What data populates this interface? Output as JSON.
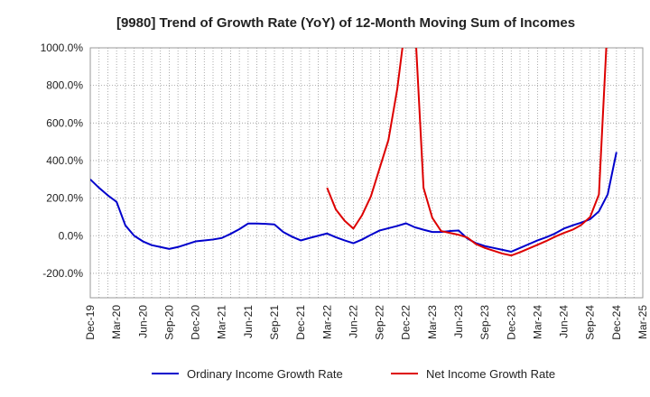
{
  "chart_data": {
    "type": "line",
    "title": "[9980]  Trend of Growth Rate (YoY) of 12-Month Moving Sum of Incomes",
    "xlabel": "",
    "ylabel": "",
    "ylim": [
      -330,
      1000
    ],
    "yticks": [
      1000,
      800,
      600,
      400,
      200,
      0,
      -200
    ],
    "ytick_labels": [
      "1000.0%",
      "800.0%",
      "600.0%",
      "400.0%",
      "200.0%",
      "0.0%",
      "-200.0%"
    ],
    "x_start": "2019-12",
    "x_end": "2025-03",
    "xtick_labels": [
      "Dec-19",
      "Mar-20",
      "Jun-20",
      "Sep-20",
      "Dec-20",
      "Mar-21",
      "Jun-21",
      "Sep-21",
      "Dec-21",
      "Mar-22",
      "Jun-22",
      "Sep-22",
      "Dec-22",
      "Mar-23",
      "Jun-23",
      "Sep-23",
      "Dec-23",
      "Mar-24",
      "Jun-24",
      "Sep-24",
      "Dec-24",
      "Mar-25"
    ],
    "grid": true,
    "legend_position": "bottom",
    "series": [
      {
        "name": "Ordinary Income Growth Rate",
        "color": "#0000cc",
        "points": [
          [
            "2019-12",
            300
          ],
          [
            "2020-01",
            255
          ],
          [
            "2020-02",
            215
          ],
          [
            "2020-03",
            180
          ],
          [
            "2020-04",
            55
          ],
          [
            "2020-05",
            0
          ],
          [
            "2020-06",
            -30
          ],
          [
            "2020-07",
            -50
          ],
          [
            "2020-08",
            -60
          ],
          [
            "2020-09",
            -70
          ],
          [
            "2020-10",
            -60
          ],
          [
            "2020-11",
            -45
          ],
          [
            "2020-12",
            -30
          ],
          [
            "2021-01",
            -25
          ],
          [
            "2021-02",
            -20
          ],
          [
            "2021-03",
            -12
          ],
          [
            "2021-04",
            10
          ],
          [
            "2021-05",
            35
          ],
          [
            "2021-06",
            65
          ],
          [
            "2021-07",
            65
          ],
          [
            "2021-08",
            63
          ],
          [
            "2021-09",
            60
          ],
          [
            "2021-10",
            20
          ],
          [
            "2021-11",
            -5
          ],
          [
            "2021-12",
            -25
          ],
          [
            "2022-01",
            -12
          ],
          [
            "2022-02",
            0
          ],
          [
            "2022-03",
            12
          ],
          [
            "2022-04",
            -8
          ],
          [
            "2022-05",
            -25
          ],
          [
            "2022-06",
            -40
          ],
          [
            "2022-07",
            -20
          ],
          [
            "2022-08",
            5
          ],
          [
            "2022-09",
            28
          ],
          [
            "2022-10",
            40
          ],
          [
            "2022-11",
            52
          ],
          [
            "2022-12",
            66
          ],
          [
            "2022-13",
            45
          ],
          [
            "2023-02",
            32
          ],
          [
            "2023-03",
            20
          ],
          [
            "2023-04",
            20
          ],
          [
            "2023-05",
            25
          ],
          [
            "2023-06",
            28
          ],
          [
            "2023-07",
            -15
          ],
          [
            "2023-08",
            -40
          ],
          [
            "2023-09",
            -55
          ],
          [
            "2023-10",
            -65
          ],
          [
            "2023-11",
            -75
          ],
          [
            "2023-12",
            -85
          ],
          [
            "2024-01",
            -65
          ],
          [
            "2024-02",
            -45
          ],
          [
            "2024-03",
            -25
          ],
          [
            "2024-04",
            -8
          ],
          [
            "2024-05",
            12
          ],
          [
            "2024-06",
            38
          ],
          [
            "2024-07",
            55
          ],
          [
            "2024-08",
            70
          ],
          [
            "2024-09",
            88
          ],
          [
            "2024-10",
            130
          ],
          [
            "2024-11",
            220
          ],
          [
            "2024-12",
            445
          ]
        ]
      },
      {
        "name": "Net Income Growth Rate",
        "color": "#dd0000",
        "points": [
          [
            "2022-03",
            255
          ],
          [
            "2022-04",
            140
          ],
          [
            "2022-05",
            80
          ],
          [
            "2022-06",
            38
          ],
          [
            "2022-07",
            110
          ],
          [
            "2022-08",
            210
          ],
          [
            "2022-09",
            360
          ],
          [
            "2022-10",
            510
          ],
          [
            "2022-11",
            780
          ],
          [
            "2022-12",
            1150
          ],
          [
            "2022-13",
            1150
          ],
          [
            "2023-02",
            255
          ],
          [
            "2023-03",
            95
          ],
          [
            "2023-04",
            25
          ],
          [
            "2023-05",
            15
          ],
          [
            "2023-06",
            5
          ],
          [
            "2023-07",
            -10
          ],
          [
            "2023-08",
            -45
          ],
          [
            "2023-09",
            -65
          ],
          [
            "2023-10",
            -80
          ],
          [
            "2023-11",
            -95
          ],
          [
            "2023-12",
            -105
          ],
          [
            "2024-01",
            -88
          ],
          [
            "2024-02",
            -68
          ],
          [
            "2024-03",
            -48
          ],
          [
            "2024-04",
            -28
          ],
          [
            "2024-05",
            -5
          ],
          [
            "2024-06",
            15
          ],
          [
            "2024-07",
            32
          ],
          [
            "2024-08",
            58
          ],
          [
            "2024-09",
            100
          ],
          [
            "2024-10",
            220
          ],
          [
            "2024-11",
            1150
          ]
        ]
      }
    ]
  }
}
